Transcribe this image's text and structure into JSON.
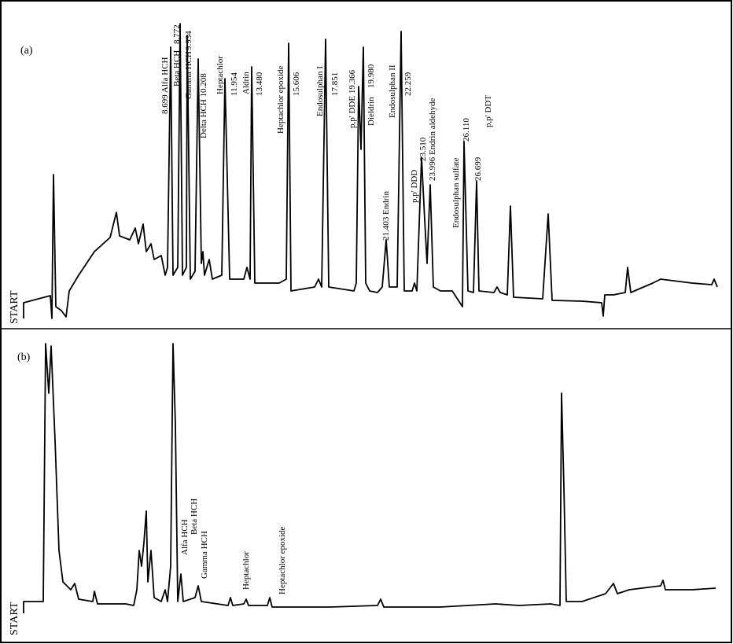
{
  "panels": [
    {
      "label": "(a)",
      "start": "START",
      "peaks": [
        "8.699 Alfa HCH",
        "Beta HCH",
        "8.772",
        "Gamma HCH",
        "9.934",
        "Delta  HCH  10.208",
        "Heptachlor",
        "11.954",
        "Aldrin",
        "13.480",
        "Heptachlor  epoxide",
        "15.606",
        "Endosulphan  I",
        "17.851",
        "p,p' DDE  19.366",
        "Dieldrin",
        "19.980",
        "Endosulphan  II",
        "22.259",
        "21.403  Endrin",
        "p,p' DDD",
        "23.510",
        "23.996  Endrin  aldehyde",
        "Endosulphan  sulfate",
        "26.110",
        "26.699",
        "p,p' DDT"
      ]
    },
    {
      "label": "(b)",
      "start": "START",
      "peaks": [
        "Alfa HCH",
        "Beta HCH",
        "Gamma HCH",
        "Heptachlor",
        "Heptachlor  epoxide"
      ]
    }
  ]
}
